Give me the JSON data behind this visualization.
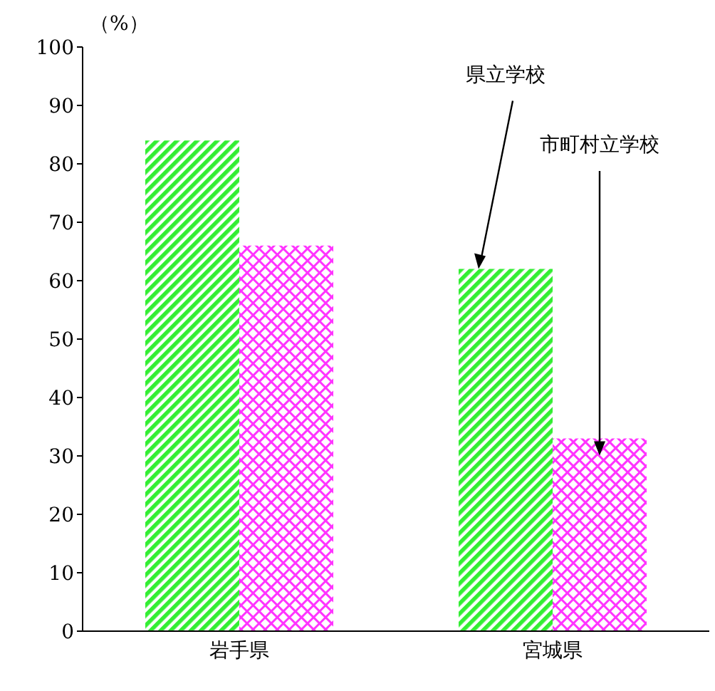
{
  "chart_data": {
    "type": "bar",
    "ylabel": "（%）",
    "categories": [
      "岩手県",
      "宮城県"
    ],
    "series": [
      {
        "name": "県立学校",
        "color": "#33ee33",
        "values": [
          84,
          62
        ]
      },
      {
        "name": "市町村立学校",
        "color": "#ff33ff",
        "values": [
          66,
          33
        ]
      }
    ],
    "ylim": [
      0,
      100
    ],
    "yticks": [
      0,
      10,
      20,
      30,
      40,
      50,
      60,
      70,
      80,
      90,
      100
    ],
    "grid": false,
    "legend": false
  }
}
